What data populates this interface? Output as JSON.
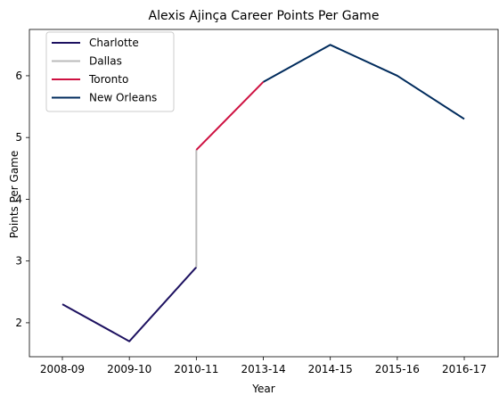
{
  "chart_data": {
    "type": "line",
    "title": "Alexis Ajinça Career Points Per Game",
    "xlabel": "Year",
    "ylabel": "Points Per Game",
    "categories": [
      "2008-09",
      "2009-10",
      "2010-11",
      "2013-14",
      "2014-15",
      "2015-16",
      "2016-17"
    ],
    "ylim": [
      1.45,
      6.75
    ],
    "yticks": [
      2,
      3,
      4,
      5,
      6
    ],
    "grid": false,
    "legend_position": "top-left",
    "series": [
      {
        "name": "Charlotte",
        "color": "#1d1160",
        "points": [
          [
            "2008-09",
            2.3
          ],
          [
            "2009-10",
            1.7
          ],
          [
            "2010-11",
            2.9
          ]
        ]
      },
      {
        "name": "Dallas",
        "color": "#bbbbbb",
        "points": [
          [
            "2010-11",
            2.9
          ],
          [
            "2010-11",
            4.8
          ]
        ]
      },
      {
        "name": "Toronto",
        "color": "#ce1141",
        "points": [
          [
            "2010-11",
            4.8
          ],
          [
            "2013-14",
            5.9
          ]
        ]
      },
      {
        "name": "New Orleans",
        "color": "#002b5c",
        "points": [
          [
            "2013-14",
            5.9
          ],
          [
            "2014-15",
            6.5
          ],
          [
            "2015-16",
            6.0
          ],
          [
            "2016-17",
            5.3
          ]
        ]
      }
    ]
  }
}
